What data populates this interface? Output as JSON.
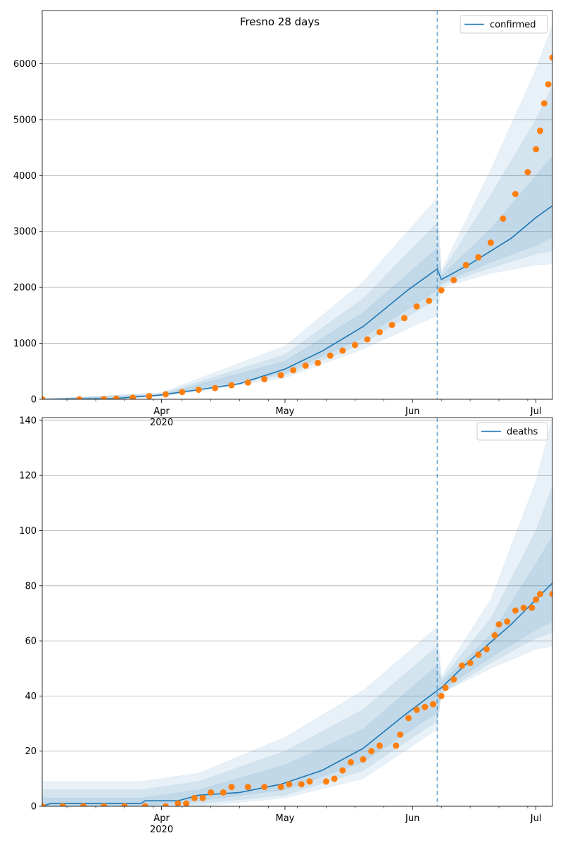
{
  "chart_data": [
    {
      "type": "line",
      "title": "Fresno 28 days",
      "xlabel": "",
      "ylabel": "",
      "x_range": [
        "2020-03-03",
        "2020-07-05"
      ],
      "x_ticks": [
        {
          "date": "2020-04-01",
          "label": "Apr",
          "sublabel": "2020"
        },
        {
          "date": "2020-05-01",
          "label": "May",
          "sublabel": ""
        },
        {
          "date": "2020-06-01",
          "label": "Jun",
          "sublabel": ""
        },
        {
          "date": "2020-07-01",
          "label": "Jul",
          "sublabel": ""
        }
      ],
      "ylim": [
        0,
        6950
      ],
      "y_ticks": [
        0,
        1000,
        2000,
        3000,
        4000,
        5000,
        6000
      ],
      "grid": "horizontal",
      "legend": "top-right",
      "vline_date": "2020-06-07",
      "colors": {
        "model": "#1f77b4",
        "observed": "#ff7f0e",
        "band": "#1f77b4"
      },
      "series": [
        {
          "name": "confirmed",
          "kind": "line",
          "points": [
            [
              "2020-03-03",
              0
            ],
            [
              "2020-03-20",
              10
            ],
            [
              "2020-03-31",
              70
            ],
            [
              "2020-04-10",
              170
            ],
            [
              "2020-04-20",
              280
            ],
            [
              "2020-05-01",
              540
            ],
            [
              "2020-05-10",
              860
            ],
            [
              "2020-05-20",
              1300
            ],
            [
              "2020-05-31",
              1960
            ],
            [
              "2020-06-07",
              2330
            ],
            [
              "2020-06-08",
              2140
            ],
            [
              "2020-06-15",
              2420
            ],
            [
              "2020-06-25",
              2880
            ],
            [
              "2020-07-01",
              3250
            ],
            [
              "2020-07-05",
              3460
            ]
          ],
          "bands": [
            {
              "points": [
                [
                  "2020-03-03",
                  3,
                  -3
                ],
                [
                  "2020-04-01",
                  120,
                  50
                ],
                [
                  "2020-05-01",
                  950,
                  380
                ],
                [
                  "2020-05-20",
                  2100,
                  900
                ],
                [
                  "2020-06-07",
                  3600,
                  1500
                ],
                [
                  "2020-06-08",
                  2300,
                  2000
                ],
                [
                  "2020-06-20",
                  4100,
                  2250
                ],
                [
                  "2020-07-01",
                  5900,
                  2400
                ],
                [
                  "2020-07-05",
                  6700,
                  2420
                ]
              ]
            },
            {
              "points": [
                [
                  "2020-03-03",
                  2,
                  -2
                ],
                [
                  "2020-04-01",
                  100,
                  60
                ],
                [
                  "2020-05-01",
                  800,
                  430
                ],
                [
                  "2020-05-20",
                  1800,
                  1000
                ],
                [
                  "2020-06-07",
                  3150,
                  1800
                ],
                [
                  "2020-06-08",
                  2250,
                  2050
                ],
                [
                  "2020-06-20",
                  3650,
                  2350
                ],
                [
                  "2020-07-01",
                  5000,
                  2600
                ],
                [
                  "2020-07-05",
                  5600,
                  2650
                ]
              ]
            },
            {
              "points": [
                [
                  "2020-03-03",
                  1,
                  -1
                ],
                [
                  "2020-04-01",
                  85,
                  65
                ],
                [
                  "2020-05-01",
                  680,
                  470
                ],
                [
                  "2020-05-20",
                  1550,
                  1100
                ],
                [
                  "2020-06-07",
                  2700,
                  1950
                ],
                [
                  "2020-06-08",
                  2200,
                  2080
                ],
                [
                  "2020-06-20",
                  3050,
                  2450
                ],
                [
                  "2020-07-01",
                  4000,
                  2750
                ],
                [
                  "2020-07-05",
                  4350,
                  2900
                ]
              ]
            }
          ]
        },
        {
          "name": "",
          "kind": "scatter",
          "points": [
            [
              "2020-03-03",
              0
            ],
            [
              "2020-03-12",
              0
            ],
            [
              "2020-03-18",
              3
            ],
            [
              "2020-03-21",
              12
            ],
            [
              "2020-03-25",
              28
            ],
            [
              "2020-03-29",
              55
            ],
            [
              "2020-04-02",
              90
            ],
            [
              "2020-04-06",
              130
            ],
            [
              "2020-04-10",
              170
            ],
            [
              "2020-04-14",
              200
            ],
            [
              "2020-04-18",
              250
            ],
            [
              "2020-04-22",
              300
            ],
            [
              "2020-04-26",
              360
            ],
            [
              "2020-04-30",
              430
            ],
            [
              "2020-05-03",
              520
            ],
            [
              "2020-05-06",
              600
            ],
            [
              "2020-05-09",
              650
            ],
            [
              "2020-05-12",
              780
            ],
            [
              "2020-05-15",
              870
            ],
            [
              "2020-05-18",
              970
            ],
            [
              "2020-05-21",
              1070
            ],
            [
              "2020-05-24",
              1200
            ],
            [
              "2020-05-27",
              1330
            ],
            [
              "2020-05-30",
              1450
            ],
            [
              "2020-06-02",
              1660
            ],
            [
              "2020-06-05",
              1760
            ],
            [
              "2020-06-08",
              1950
            ],
            [
              "2020-06-11",
              2130
            ],
            [
              "2020-06-14",
              2400
            ],
            [
              "2020-06-17",
              2540
            ],
            [
              "2020-06-20",
              2800
            ],
            [
              "2020-06-23",
              3230
            ],
            [
              "2020-06-26",
              3670
            ],
            [
              "2020-06-29",
              4060
            ],
            [
              "2020-07-01",
              4470
            ],
            [
              "2020-07-02",
              4800
            ],
            [
              "2020-07-03",
              5290
            ],
            [
              "2020-07-04",
              5630
            ],
            [
              "2020-07-05",
              6110
            ]
          ]
        }
      ]
    },
    {
      "type": "line",
      "title": "",
      "xlabel": "",
      "ylabel": "",
      "x_range": [
        "2020-03-03",
        "2020-07-05"
      ],
      "x_ticks": [
        {
          "date": "2020-04-01",
          "label": "Apr",
          "sublabel": "2020"
        },
        {
          "date": "2020-05-01",
          "label": "May",
          "sublabel": ""
        },
        {
          "date": "2020-06-01",
          "label": "Jun",
          "sublabel": ""
        },
        {
          "date": "2020-07-01",
          "label": "Jul",
          "sublabel": ""
        }
      ],
      "ylim": [
        0,
        141
      ],
      "y_ticks": [
        0,
        20,
        40,
        60,
        80,
        100,
        120,
        140
      ],
      "grid": "horizontal",
      "legend": "top-right",
      "vline_date": "2020-06-07",
      "colors": {
        "model": "#1f77b4",
        "observed": "#ff7f0e",
        "band": "#1f77b4"
      },
      "series": [
        {
          "name": "deaths",
          "kind": "line",
          "points": [
            [
              "2020-03-03",
              0
            ],
            [
              "2020-03-05",
              1
            ],
            [
              "2020-03-27",
              1
            ],
            [
              "2020-03-28",
              2
            ],
            [
              "2020-04-05",
              2
            ],
            [
              "2020-04-10",
              4
            ],
            [
              "2020-04-20",
              5
            ],
            [
              "2020-04-30",
              8
            ],
            [
              "2020-05-10",
              13
            ],
            [
              "2020-05-20",
              21
            ],
            [
              "2020-05-30",
              33
            ],
            [
              "2020-06-07",
              42
            ],
            [
              "2020-06-08",
              43
            ],
            [
              "2020-06-15",
              53
            ],
            [
              "2020-06-25",
              66
            ],
            [
              "2020-07-01",
              75
            ],
            [
              "2020-07-05",
              81
            ]
          ],
          "bands": [
            {
              "points": [
                [
                  "2020-03-03",
                  9,
                  -1
                ],
                [
                  "2020-03-27",
                  9,
                  0
                ],
                [
                  "2020-04-10",
                  12,
                  0
                ],
                [
                  "2020-05-01",
                  25,
                  3
                ],
                [
                  "2020-05-20",
                  42,
                  10
                ],
                [
                  "2020-06-07",
                  65,
                  28
                ],
                [
                  "2020-06-08",
                  47,
                  41
                ],
                [
                  "2020-06-20",
                  75,
                  50
                ],
                [
                  "2020-07-01",
                  118,
                  57
                ],
                [
                  "2020-07-05",
                  141,
                  58
                ]
              ]
            },
            {
              "points": [
                [
                  "2020-03-03",
                  6,
                  -1
                ],
                [
                  "2020-03-27",
                  6,
                  0
                ],
                [
                  "2020-04-10",
                  9,
                  1
                ],
                [
                  "2020-05-01",
                  20,
                  4
                ],
                [
                  "2020-05-20",
                  35,
                  13
                ],
                [
                  "2020-06-07",
                  58,
                  31
                ],
                [
                  "2020-06-08",
                  46,
                  41
                ],
                [
                  "2020-06-20",
                  68,
                  52
                ],
                [
                  "2020-07-01",
                  100,
                  61
                ],
                [
                  "2020-07-05",
                  116,
                  63
                ]
              ]
            },
            {
              "points": [
                [
                  "2020-03-03",
                  3,
                  0
                ],
                [
                  "2020-03-27",
                  3,
                  0
                ],
                [
                  "2020-04-10",
                  6,
                  2
                ],
                [
                  "2020-05-01",
                  15,
                  6
                ],
                [
                  "2020-05-20",
                  28,
                  16
                ],
                [
                  "2020-06-07",
                  51,
                  34
                ],
                [
                  "2020-06-08",
                  45,
                  42
                ],
                [
                  "2020-06-20",
                  62,
                  54
                ],
                [
                  "2020-07-01",
                  88,
                  64
                ],
                [
                  "2020-07-05",
                  98,
                  67
                ]
              ]
            }
          ]
        },
        {
          "name": "",
          "kind": "scatter",
          "points": [
            [
              "2020-03-03",
              0
            ],
            [
              "2020-03-08",
              0
            ],
            [
              "2020-03-13",
              0
            ],
            [
              "2020-03-18",
              0
            ],
            [
              "2020-03-23",
              0
            ],
            [
              "2020-03-28",
              0
            ],
            [
              "2020-04-02",
              0
            ],
            [
              "2020-04-05",
              1
            ],
            [
              "2020-04-07",
              1
            ],
            [
              "2020-04-09",
              3
            ],
            [
              "2020-04-11",
              3
            ],
            [
              "2020-04-13",
              5
            ],
            [
              "2020-04-16",
              5
            ],
            [
              "2020-04-18",
              7
            ],
            [
              "2020-04-22",
              7
            ],
            [
              "2020-04-26",
              7
            ],
            [
              "2020-04-30",
              7
            ],
            [
              "2020-05-02",
              8
            ],
            [
              "2020-05-05",
              8
            ],
            [
              "2020-05-07",
              9
            ],
            [
              "2020-05-11",
              9
            ],
            [
              "2020-05-13",
              10
            ],
            [
              "2020-05-15",
              13
            ],
            [
              "2020-05-17",
              16
            ],
            [
              "2020-05-20",
              17
            ],
            [
              "2020-05-22",
              20
            ],
            [
              "2020-05-24",
              22
            ],
            [
              "2020-05-28",
              22
            ],
            [
              "2020-05-29",
              26
            ],
            [
              "2020-05-31",
              32
            ],
            [
              "2020-06-02",
              35
            ],
            [
              "2020-06-04",
              36
            ],
            [
              "2020-06-06",
              37
            ],
            [
              "2020-06-08",
              40
            ],
            [
              "2020-06-09",
              43
            ],
            [
              "2020-06-11",
              46
            ],
            [
              "2020-06-13",
              51
            ],
            [
              "2020-06-15",
              52
            ],
            [
              "2020-06-17",
              55
            ],
            [
              "2020-06-19",
              57
            ],
            [
              "2020-06-21",
              62
            ],
            [
              "2020-06-22",
              66
            ],
            [
              "2020-06-24",
              67
            ],
            [
              "2020-06-26",
              71
            ],
            [
              "2020-06-28",
              72
            ],
            [
              "2020-06-30",
              72
            ],
            [
              "2020-07-01",
              75
            ],
            [
              "2020-07-02",
              77
            ],
            [
              "2020-07-05",
              77
            ]
          ]
        }
      ]
    }
  ]
}
